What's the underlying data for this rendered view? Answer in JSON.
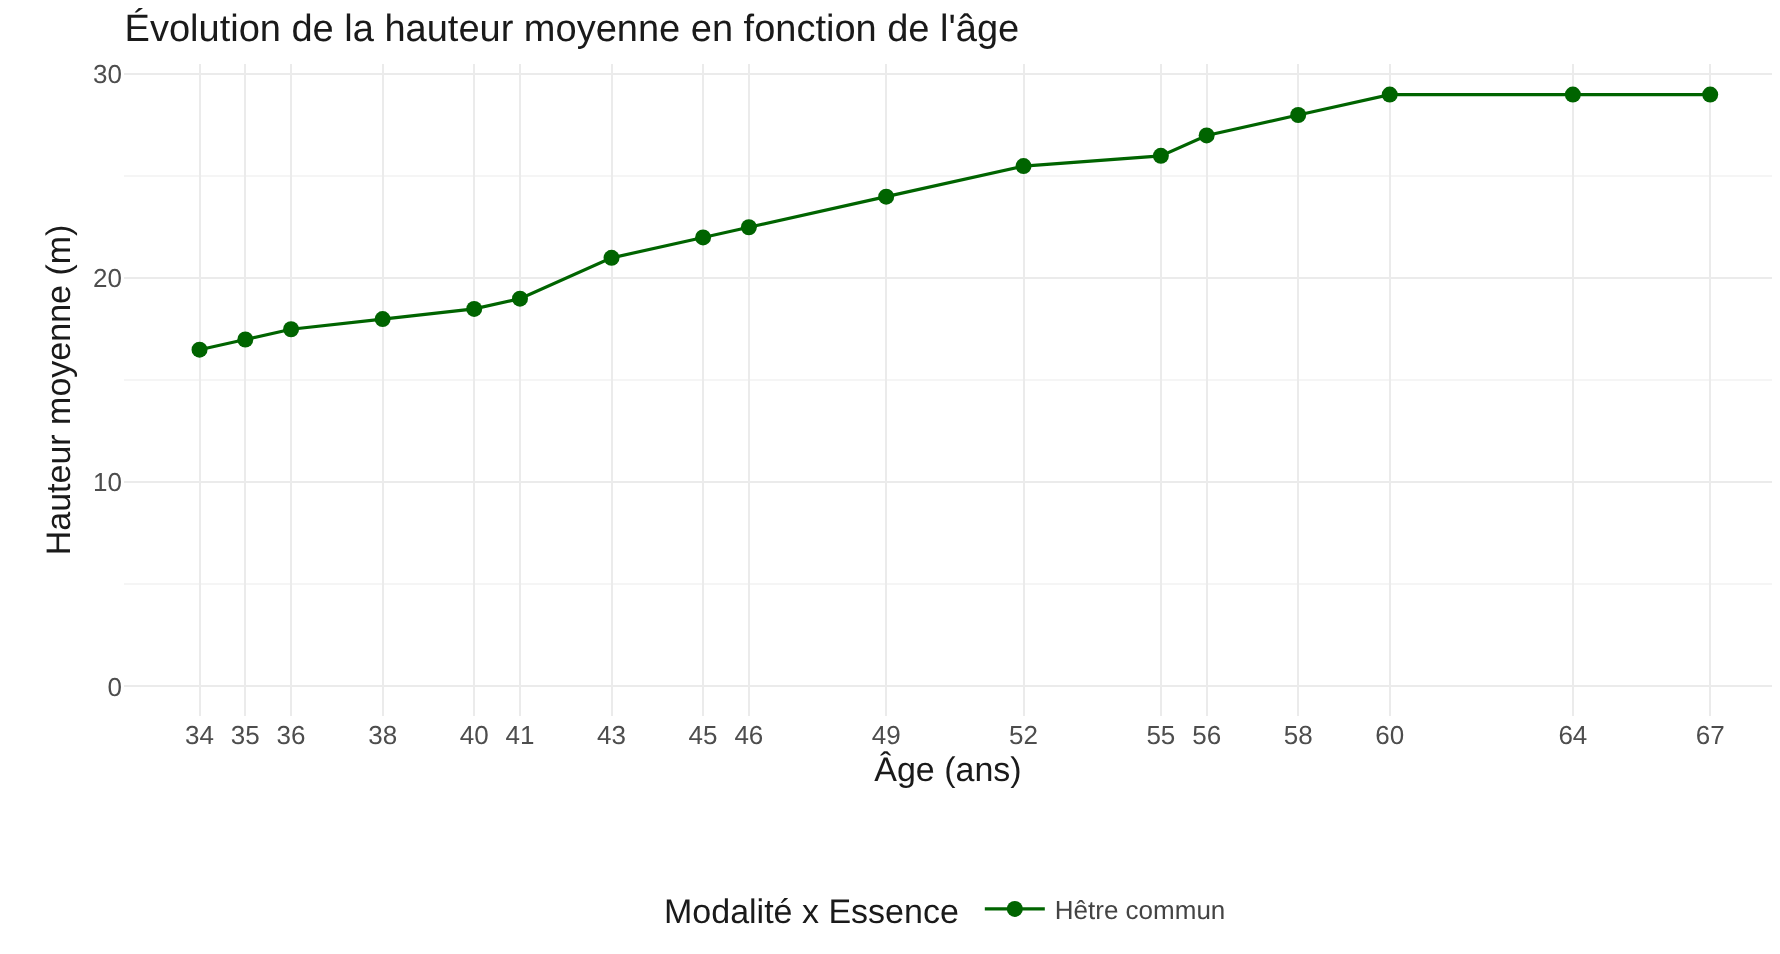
{
  "chart_data": {
    "type": "line",
    "title": "Évolution de la hauteur moyenne en fonction de l'âge",
    "xlabel": "Âge (ans)",
    "ylabel": "Hauteur moyenne (m)",
    "legend_title": "Modalité x Essence",
    "x": [
      34,
      35,
      36,
      38,
      40,
      41,
      43,
      45,
      46,
      49,
      52,
      55,
      56,
      58,
      60,
      64,
      67
    ],
    "series": [
      {
        "name": "Hêtre commun",
        "color": "#006400",
        "values": [
          16.5,
          17,
          17.5,
          18,
          18.5,
          19,
          21,
          22,
          22.5,
          24,
          25.5,
          26,
          27,
          28,
          29,
          29,
          29
        ]
      }
    ],
    "xlim": [
      32.35,
      68.35
    ],
    "xticks": [
      34,
      35,
      36,
      38,
      40,
      41,
      43,
      45,
      46,
      49,
      52,
      55,
      56,
      58,
      60,
      64,
      67
    ],
    "ylim": [
      -1.45,
      30.5
    ],
    "yticks": [
      0,
      10,
      20,
      30
    ],
    "grid": true,
    "legend": "bottom",
    "marker": "circle",
    "line_style": "solid"
  }
}
